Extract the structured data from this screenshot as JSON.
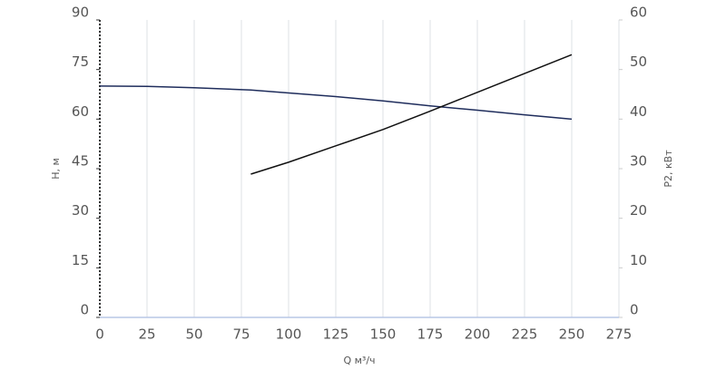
{
  "chart_data": {
    "type": "line",
    "x_label": "Q м³/ч",
    "y_label": "H, м",
    "y2_label": "P2, кВт",
    "xlim": [
      0,
      275
    ],
    "xticks": [
      0,
      25,
      50,
      75,
      100,
      125,
      150,
      175,
      200,
      225,
      250,
      275
    ],
    "ylim": [
      0,
      90
    ],
    "yticks": [
      0,
      15,
      30,
      45,
      60,
      75,
      90
    ],
    "y2lim": [
      0,
      60
    ],
    "y2ticks": [
      0,
      10,
      20,
      30,
      40,
      50,
      60
    ],
    "grid": true,
    "series": [
      {
        "color": "#1f2d5c",
        "x": [
          0,
          25,
          50,
          80,
          100,
          125,
          150,
          175,
          200,
          225,
          250
        ],
        "values": [
          70,
          69.9,
          69.5,
          68.8,
          67.9,
          66.8,
          65.5,
          64,
          62.7,
          61.3,
          60
        ]
      },
      {
        "color": "#111111",
        "axis": "y2",
        "x": [
          80,
          100,
          125,
          150,
          175,
          200,
          225,
          250
        ],
        "values": [
          28.9,
          31.3,
          34.6,
          37.9,
          41.6,
          45.4,
          49.2,
          53
        ]
      }
    ]
  }
}
